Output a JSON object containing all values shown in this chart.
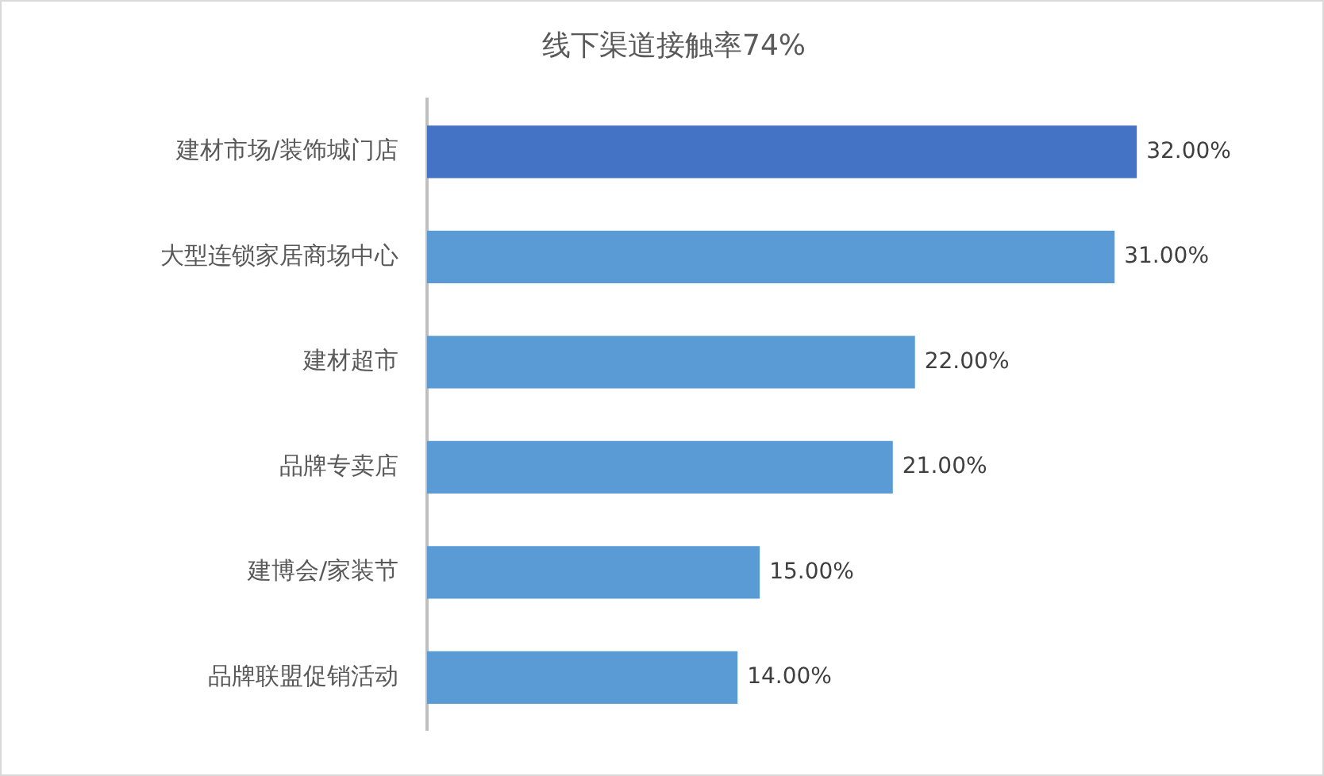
{
  "chart_data": {
    "type": "bar",
    "orientation": "horizontal",
    "title": "线下渠道接触率74%",
    "categories": [
      "建材市场/装饰城门店",
      "大型连锁家居商场中心",
      "建材超市",
      "品牌专卖店",
      "建博会/家装节",
      "品牌联盟促销活动"
    ],
    "values": [
      32,
      31,
      22,
      21,
      15,
      14
    ],
    "colors": [
      "#4472c4",
      "#5b9bd5",
      "#5b9bd5",
      "#5b9bd5",
      "#5b9bd5",
      "#5b9bd5"
    ],
    "value_labels": [
      "32.00%",
      "31.00%",
      "22.00%",
      "21.00%",
      "15.00%",
      "14.00%"
    ],
    "grid": false,
    "legend": false
  }
}
